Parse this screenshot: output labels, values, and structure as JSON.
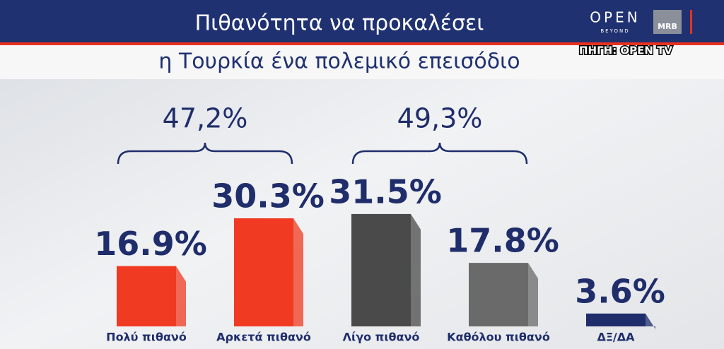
{
  "header": {
    "title": "Πιθανότητα να προκαλέσει",
    "subtitle": "η Τουρκία ένα πολεμικό επεισόδιο",
    "logo": "OPEN",
    "logo_sub": "BEYOND",
    "pollster": "MRB",
    "source": "ΠΗΓΗ: OPEN TV"
  },
  "chart_data": {
    "type": "bar",
    "categories": [
      "Πολύ πιθανό",
      "Αρκετά πιθανό",
      "Λίγο πιθανό",
      "Καθόλου πιθανό",
      "ΔΞ/ΔΑ"
    ],
    "values": [
      16.9,
      30.3,
      31.5,
      17.8,
      3.6
    ],
    "value_labels": [
      "16.9%",
      "30.3%",
      "31.5%",
      "17.8%",
      "3.6%"
    ],
    "colors": [
      "#f03a22",
      "#f03a22",
      "#4a4a4a",
      "#6a6a6a",
      "#1f2d6b"
    ],
    "groups": [
      {
        "value": 47.2,
        "label": "47,2%"
      },
      {
        "value": 49.3,
        "label": "49,3%"
      }
    ]
  }
}
